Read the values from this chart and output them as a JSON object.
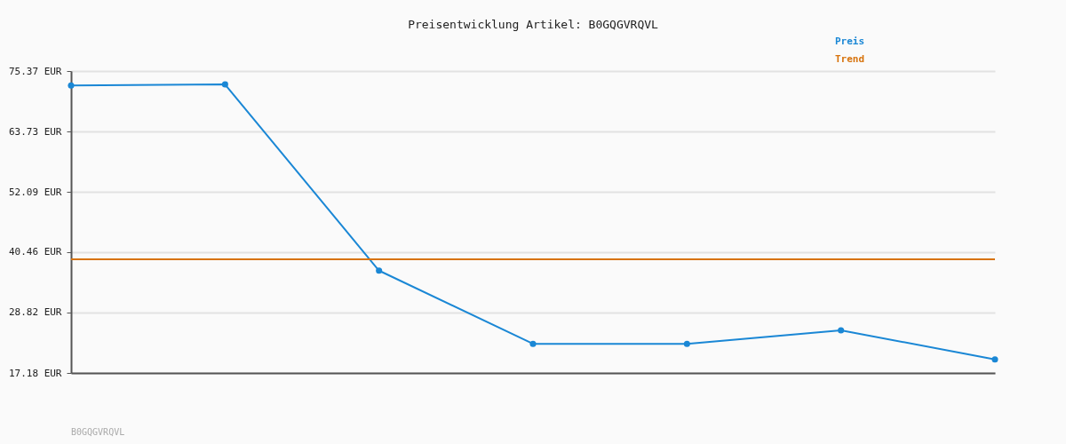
{
  "chart_data": {
    "type": "line",
    "title": "Preisentwicklung Artikel: B0GQGVRQVL",
    "categories": [
      null,
      null,
      null,
      null,
      null,
      null,
      null
    ],
    "series": [
      {
        "name": "Preis",
        "color": "#1a87d5",
        "values": [
          72.6,
          72.8,
          36.9,
          22.8,
          22.8,
          25.4,
          19.8
        ],
        "marker": "circle"
      },
      {
        "name": "Trend",
        "color": "#d7730c",
        "values": [
          39.1,
          39.1,
          39.1,
          39.1,
          39.1,
          39.1,
          39.1
        ],
        "marker": "none"
      }
    ],
    "ylim": [
      17.18,
      75.37
    ],
    "yticks": [
      {
        "value": 17.18,
        "label": "17.18 EUR"
      },
      {
        "value": 28.82,
        "label": "28.82 EUR"
      },
      {
        "value": 40.46,
        "label": "40.46 EUR"
      },
      {
        "value": 52.09,
        "label": "52.09 EUR"
      },
      {
        "value": 63.73,
        "label": "63.73 EUR"
      },
      {
        "value": 75.37,
        "label": "75.37 EUR"
      }
    ],
    "grid": "y",
    "legend": "top right",
    "line_style": "solid",
    "tick_labels": "y",
    "annotations": [
      "B0GQGVRQVL"
    ]
  }
}
